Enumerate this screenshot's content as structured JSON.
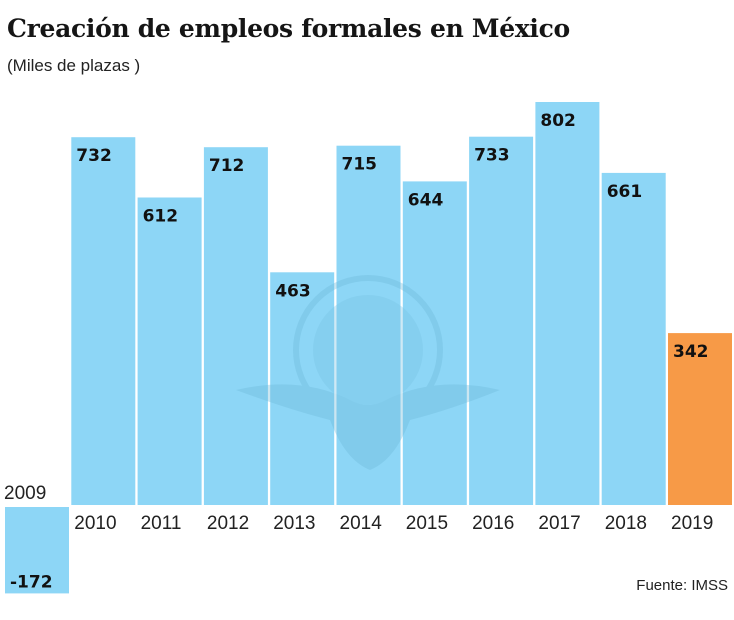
{
  "header": {
    "title": "Creación de empleos formales en México",
    "subtitle": "(Miles de plazas )"
  },
  "footer": {
    "source": "Fuente: IMSS"
  },
  "colors": {
    "bar": "#8dd6f6",
    "highlight": "#f79a47",
    "watermark": "#7cc6e6"
  },
  "watermark": {
    "icon": "imss-eagle-globe-logo"
  },
  "chart_data": {
    "type": "bar",
    "title": "Creación de empleos formales en México",
    "subtitle": "(Miles de plazas )",
    "xlabel": "",
    "ylabel": "Miles de plazas",
    "categories": [
      "2009",
      "2010",
      "2011",
      "2012",
      "2013",
      "2014",
      "2015",
      "2016",
      "2017",
      "2018",
      "2019"
    ],
    "values": [
      -172,
      732,
      612,
      712,
      463,
      715,
      644,
      733,
      802,
      661,
      342
    ],
    "data_labels": [
      "-172",
      "732",
      "612",
      "712",
      "463",
      "715",
      "644",
      "733",
      "802",
      "661",
      "342"
    ],
    "highlight": [
      "2019"
    ],
    "ylim": [
      -172,
      802
    ],
    "grid": false,
    "legend": "none",
    "source": "Fuente: IMSS"
  }
}
